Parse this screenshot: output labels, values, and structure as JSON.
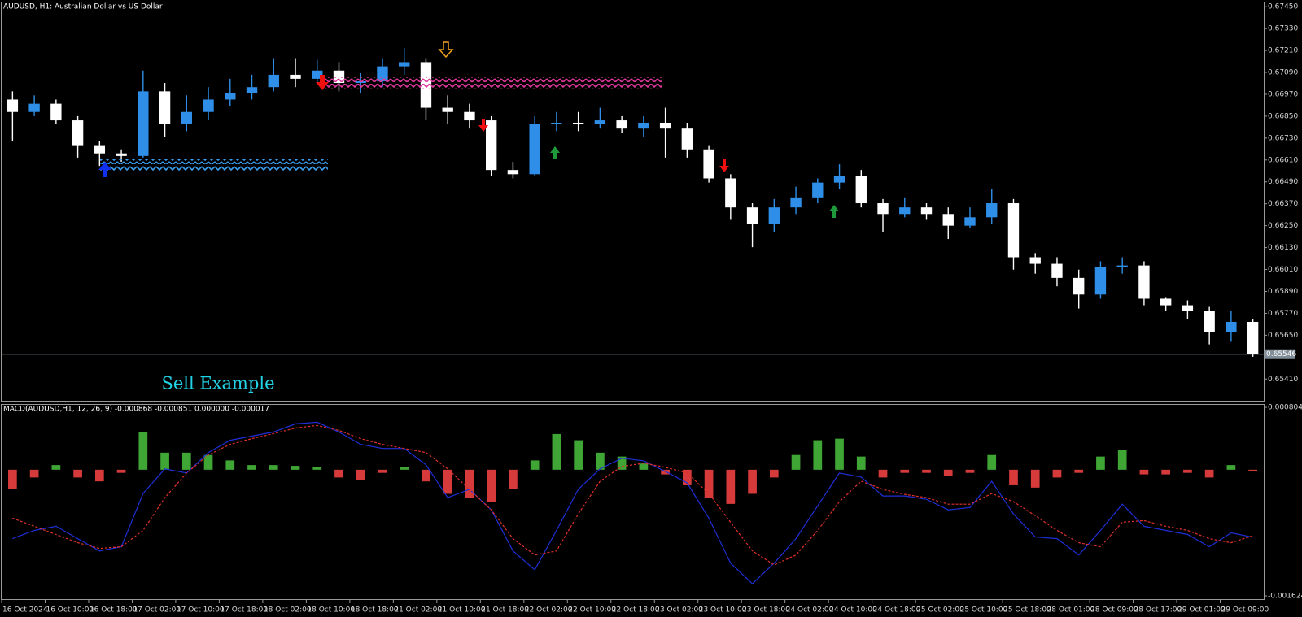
{
  "chart_data": [
    {
      "type": "candlestick",
      "title": "AUDUSD, H1:  Australian Dollar vs US Dollar",
      "annotation": "Sell Example",
      "categories": [
        "16 Oct 2024",
        null,
        "16 Oct 10:00",
        null,
        "16 Oct 18:00",
        null,
        "17 Oct 02:00",
        null,
        "17 Oct 10:00",
        null,
        "17 Oct 18:00",
        null,
        "18 Oct 02:00",
        null,
        "18 Oct 10:00",
        null,
        "18 Oct 18:00",
        null,
        "21 Oct 02:00",
        null,
        "21 Oct 10:00",
        null,
        "21 Oct 18:00",
        null,
        "22 Oct 02:00",
        null,
        "22 Oct 10:00",
        null,
        "22 Oct 18:00",
        null,
        "23 Oct 02:00",
        null,
        "23 Oct 10:00",
        null,
        "23 Oct 18:00",
        null,
        "24 Oct 02:00",
        null,
        "24 Oct 10:00",
        null,
        "24 Oct 18:00",
        null,
        "25 Oct 02:00",
        null,
        "25 Oct 10:00",
        null,
        "25 Oct 18:00",
        null,
        "28 Oct 01:00",
        null,
        "28 Oct 09:00",
        null,
        "28 Oct 17:00",
        null,
        "29 Oct 01:00",
        null,
        "29 Oct 09:00",
        null
      ],
      "open": [
        0.66941,
        0.66873,
        0.66918,
        0.66827,
        0.66691,
        0.66646,
        0.66632,
        0.66986,
        0.66805,
        0.66873,
        0.66941,
        0.66977,
        0.67009,
        0.67077,
        0.67055,
        0.671,
        0.67032,
        0.67041,
        0.67123,
        0.67146,
        0.66896,
        0.66873,
        0.66827,
        0.66555,
        0.66532,
        0.66805,
        0.66814,
        0.66805,
        0.66827,
        0.66782,
        0.66814,
        0.66782,
        0.66668,
        0.66509,
        0.6635,
        0.66259,
        0.6635,
        0.66405,
        0.66486,
        0.66523,
        0.66373,
        0.66314,
        0.6635,
        0.66314,
        0.6625,
        0.66296,
        0.66373,
        0.66077,
        0.66041,
        0.65964,
        0.65873,
        0.66023,
        0.66032,
        0.6585,
        0.65814,
        0.65782,
        0.65668,
        0.65723
      ],
      "high": [
        0.66986,
        0.66964,
        0.66941,
        0.6685,
        0.66714,
        0.66668,
        0.671,
        0.67032,
        0.66964,
        0.67009,
        0.67055,
        0.67077,
        0.67168,
        0.67168,
        0.67159,
        0.67146,
        0.67086,
        0.67168,
        0.67223,
        0.67168,
        0.66964,
        0.66918,
        0.6685,
        0.666,
        0.6685,
        0.66873,
        0.66873,
        0.66896,
        0.6685,
        0.6685,
        0.66896,
        0.66814,
        0.66691,
        0.66532,
        0.66373,
        0.66396,
        0.66464,
        0.66509,
        0.66586,
        0.66555,
        0.66396,
        0.66405,
        0.66373,
        0.6635,
        0.6635,
        0.6645,
        0.66396,
        0.661,
        0.66077,
        0.66009,
        0.66055,
        0.66077,
        0.66055,
        0.65859,
        0.65841,
        0.65805,
        0.65782,
        0.65737
      ],
      "low": [
        0.66714,
        0.6685,
        0.66805,
        0.66623,
        0.66577,
        0.666,
        0.66623,
        0.66736,
        0.66768,
        0.66827,
        0.66905,
        0.66941,
        0.66986,
        0.67009,
        0.67032,
        0.66986,
        0.66977,
        0.67009,
        0.67077,
        0.66827,
        0.66805,
        0.66782,
        0.66523,
        0.66509,
        0.66523,
        0.66768,
        0.66768,
        0.66782,
        0.66759,
        0.66736,
        0.66623,
        0.66623,
        0.66486,
        0.66282,
        0.66132,
        0.66214,
        0.66314,
        0.66373,
        0.6645,
        0.6635,
        0.66214,
        0.66296,
        0.66282,
        0.66177,
        0.66236,
        0.66259,
        0.66009,
        0.65987,
        0.65918,
        0.65796,
        0.6585,
        0.65987,
        0.65814,
        0.65782,
        0.65737,
        0.656,
        0.65614,
        0.65532
      ],
      "close": [
        0.66873,
        0.66918,
        0.66827,
        0.66691,
        0.66646,
        0.66632,
        0.66986,
        0.66805,
        0.66873,
        0.66941,
        0.66977,
        0.67009,
        0.67077,
        0.67055,
        0.671,
        0.67032,
        0.67041,
        0.67123,
        0.67146,
        0.66896,
        0.66873,
        0.66827,
        0.66555,
        0.66532,
        0.66805,
        0.66814,
        0.66805,
        0.66827,
        0.66782,
        0.66814,
        0.66782,
        0.66668,
        0.66509,
        0.6635,
        0.66259,
        0.6635,
        0.66405,
        0.66486,
        0.66523,
        0.66373,
        0.66314,
        0.6635,
        0.66314,
        0.6625,
        0.66296,
        0.66373,
        0.66077,
        0.66041,
        0.65964,
        0.65873,
        0.66023,
        0.66032,
        0.6585,
        0.65814,
        0.65782,
        0.65668,
        0.65723,
        0.65546
      ],
      "up_color": "#2f8fe8",
      "down_color": "#ffffff",
      "current_price": 0.65546,
      "ylim": [
        0.65291,
        0.67473
      ],
      "yticks": [
        {
          "value": 0.6745,
          "label": "0.67450"
        },
        {
          "value": 0.6733,
          "label": "0.67330"
        },
        {
          "value": 0.6721,
          "label": "0.67210"
        },
        {
          "value": 0.6709,
          "label": "0.67090"
        },
        {
          "value": 0.6697,
          "label": "0.66970"
        },
        {
          "value": 0.6685,
          "label": "0.66850"
        },
        {
          "value": 0.6673,
          "label": "0.66730"
        },
        {
          "value": 0.6661,
          "label": "0.66610"
        },
        {
          "value": 0.6649,
          "label": "0.66490"
        },
        {
          "value": 0.6637,
          "label": "0.66370"
        },
        {
          "value": 0.6625,
          "label": "0.66250"
        },
        {
          "value": 0.6613,
          "label": "0.66130"
        },
        {
          "value": 0.6601,
          "label": "0.66010"
        },
        {
          "value": 0.6589,
          "label": "0.65890"
        },
        {
          "value": 0.6577,
          "label": "0.65770"
        },
        {
          "value": 0.6565,
          "label": "0.65650"
        },
        {
          "value": 0.6541,
          "label": "0.65410"
        }
      ],
      "grid": false
    },
    {
      "type": "macd",
      "title": "MACD(AUDUSD,H1, 12, 26, 9) -0.000868 -0.000851 0.000000 -0.000017",
      "series": [
        {
          "kind": "bar",
          "up_color": "#3fa535",
          "down_color": "#d63a3a",
          "values": [
            -0.00025,
            -0.0001,
            6e-05,
            -0.0001,
            -0.00015,
            -4e-05,
            0.00049,
            0.00022,
            0.00022,
            0.00019,
            0.00012,
            6e-05,
            6e-05,
            5e-05,
            4e-05,
            -0.0001,
            -0.00013,
            -4e-05,
            4e-05,
            -0.00015,
            -0.00031,
            -0.00036,
            -0.00041,
            -0.00025,
            0.00012,
            0.00046,
            0.00038,
            0.00022,
            0.00017,
            8e-05,
            -6e-05,
            -0.0002,
            -0.00036,
            -0.00044,
            -0.00031,
            -0.0001,
            0.00019,
            0.00038,
            0.0004,
            0.00017,
            -0.0001,
            -4e-05,
            -4e-05,
            -8e-05,
            -4e-05,
            0.00019,
            -0.0002,
            -0.00023,
            -0.0001,
            -4e-05,
            0.00017,
            0.00025,
            -6e-05,
            -6e-05,
            -4e-05,
            -0.0001,
            6e-05,
            -1.7e-05
          ]
        },
        {
          "kind": "line",
          "color": "#1f2fd8",
          "dash": false,
          "values": [
            -0.000887,
            -0.000781,
            -0.000728,
            -0.000887,
            -0.001045,
            -0.000992,
            -0.000306,
            1.1e-05,
            -4.2e-05,
            0.000222,
            0.00038,
            0.000433,
            0.000486,
            0.000591,
            0.000612,
            0.000486,
            0.000327,
            0.000274,
            0.000274,
            6.3e-05,
            -0.000359,
            -0.000253,
            -0.000517,
            -0.001045,
            -0.001288,
            -0.000781,
            -0.000253,
            1.1e-05,
            0.000148,
            0.000116,
            -2.1e-05,
            -0.000169,
            -0.000623,
            -0.001203,
            -0.001467,
            -0.001203,
            -0.000887,
            -0.000465,
            -4.2e-05,
            -9.5e-05,
            -0.000338,
            -0.000338,
            -0.00038,
            -0.000517,
            -0.000486,
            -0.000148,
            -0.00057,
            -0.000866,
            -0.000887,
            -0.001098,
            -0.000781,
            -0.000443,
            -0.000728,
            -0.000781,
            -0.000834,
            -0.000992,
            -0.000813,
            -0.000868
          ]
        },
        {
          "kind": "line",
          "color": "#e0302a",
          "dash": true,
          "values": [
            -0.000623,
            -0.000728,
            -0.000834,
            -0.00094,
            -0.001013,
            -0.000992,
            -0.000781,
            -0.000359,
            -4.2e-05,
            0.00019,
            0.000327,
            0.000401,
            0.000465,
            0.000538,
            0.00057,
            0.000507,
            0.000401,
            0.000327,
            0.000274,
            0.000222,
            1.1e-05,
            -0.000253,
            -0.000517,
            -0.000887,
            -0.001098,
            -0.001045,
            -0.00057,
            -0.000148,
            4.2e-05,
            8.4e-05,
            3.2e-05,
            -4.2e-05,
            -0.000306,
            -0.000676,
            -0.001045,
            -0.001225,
            -0.001098,
            -0.000781,
            -0.000412,
            -0.000148,
            -0.000253,
            -0.000317,
            -0.000359,
            -0.000443,
            -0.000443,
            -0.000306,
            -0.000412,
            -0.000591,
            -0.000781,
            -0.00094,
            -0.000992,
            -0.000676,
            -0.000655,
            -0.000728,
            -0.000781,
            -0.000887,
            -0.00094,
            -0.000851
          ]
        }
      ],
      "ylim": [
        -0.001666,
        0.000836
      ],
      "yticks": [
        0.000804,
        -0.001624
      ]
    }
  ]
}
